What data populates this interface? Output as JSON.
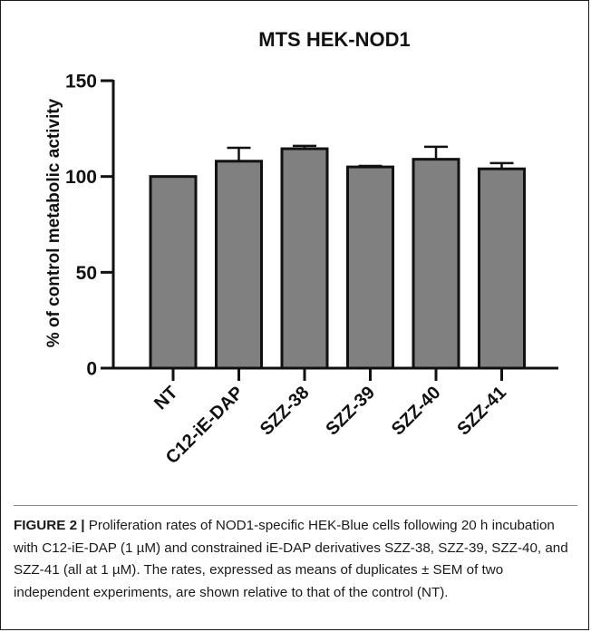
{
  "chart_data": {
    "type": "bar",
    "title": "MTS HEK-NOD1",
    "xlabel": "",
    "ylabel": "% of control metabolic activity",
    "categories": [
      "NT",
      "C12-iE-DAP",
      "SZZ-38",
      "SZZ-39",
      "SZZ-40",
      "SZZ-41"
    ],
    "values": [
      100,
      108,
      114.5,
      105,
      109,
      104
    ],
    "errors": [
      0,
      7,
      1.5,
      0.5,
      6.5,
      3
    ],
    "yticks": [
      0,
      50,
      100,
      150
    ],
    "ylim": [
      0,
      150
    ],
    "grid": false,
    "bar_color": "#808080"
  },
  "caption": {
    "label": "FIGURE 2 |",
    "text": "Proliferation rates of NOD1-specific HEK-Blue cells following 20 h incubation with C12-iE-DAP (1 µM) and constrained iE-DAP derivatives SZZ-38, SZZ-39, SZZ-40, and SZZ-41 (all at 1 µM). The rates, expressed as means of duplicates ± SEM of two independent experiments, are shown relative to that of the control (NT)."
  }
}
